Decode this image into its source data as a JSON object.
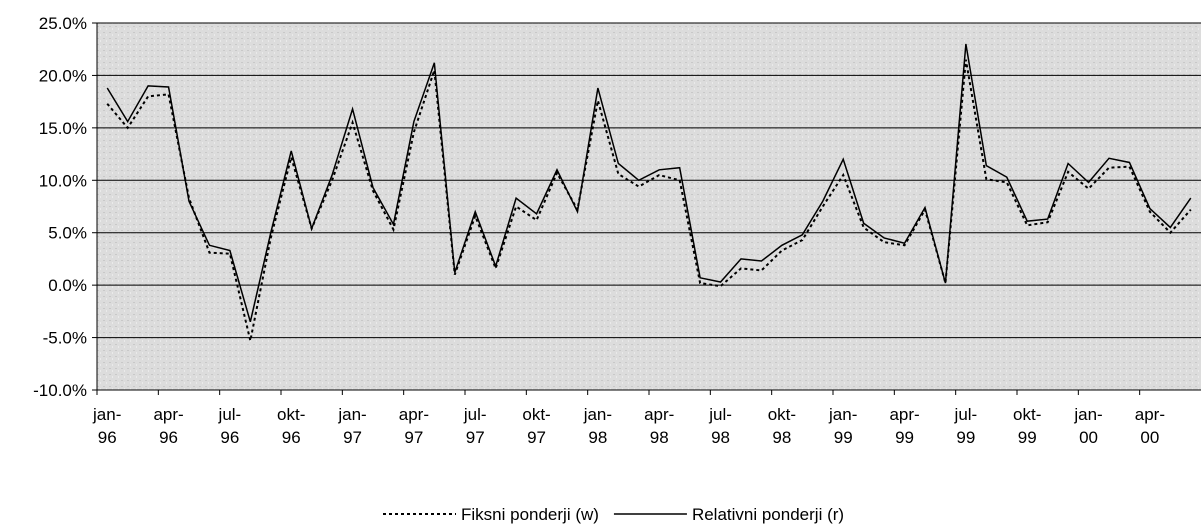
{
  "chart_data": {
    "type": "line",
    "categories": [
      "jan-96",
      null,
      null,
      "apr-96",
      null,
      null,
      "jul-96",
      null,
      null,
      "okt-96",
      null,
      null,
      "jan-97",
      null,
      null,
      "apr-97",
      null,
      null,
      "jul-97",
      null,
      null,
      "okt-97",
      null,
      null,
      "jan-98",
      null,
      null,
      "apr-98",
      null,
      null,
      "jul-98",
      null,
      null,
      "okt-98",
      null,
      null,
      "jan-99",
      null,
      null,
      "apr-99",
      null,
      null,
      "jul-99",
      null,
      null,
      "okt-99",
      null,
      null,
      "jan-00",
      null,
      null,
      "apr-00",
      null,
      null
    ],
    "series": [
      {
        "name": "Fiksni ponderji (w)",
        "color": "#000000",
        "dash": true,
        "values": [
          17.3,
          15.0,
          18.0,
          18.2,
          8.3,
          3.1,
          3.0,
          -5.3,
          4.5,
          12.2,
          5.4,
          10.0,
          15.5,
          9.0,
          5.3,
          14.6,
          20.5,
          1.0,
          6.6,
          1.6,
          7.5,
          6.2,
          10.7,
          7.2,
          17.6,
          10.6,
          9.4,
          10.5,
          10.0,
          0.2,
          -0.1,
          1.6,
          1.4,
          3.3,
          4.3,
          7.5,
          10.5,
          5.5,
          4.1,
          3.8,
          7.2,
          0.2,
          21.5,
          10.1,
          9.8,
          5.7,
          6.0,
          10.8,
          9.2,
          11.2,
          11.3,
          7.0,
          5.0,
          7.2
        ]
      },
      {
        "name": "Relativni ponderji (r)",
        "color": "#000000",
        "dash": false,
        "values": [
          18.8,
          15.6,
          19.0,
          18.9,
          8.0,
          3.8,
          3.3,
          -3.5,
          5.0,
          12.8,
          5.4,
          10.5,
          16.8,
          9.3,
          5.8,
          15.6,
          21.2,
          1.2,
          7.0,
          1.8,
          8.3,
          6.8,
          11.0,
          7.0,
          18.8,
          11.6,
          10.0,
          11.0,
          11.2,
          0.7,
          0.3,
          2.5,
          2.3,
          3.8,
          4.8,
          8.0,
          12.0,
          5.9,
          4.5,
          4.0,
          7.4,
          0.2,
          23.0,
          11.4,
          10.3,
          6.1,
          6.3,
          11.6,
          9.8,
          12.1,
          11.7,
          7.3,
          5.5,
          8.3
        ]
      }
    ],
    "ylim": [
      -10,
      25
    ],
    "yticks": [
      {
        "value": -10,
        "label": "-10.0%"
      },
      {
        "value": -5,
        "label": "-5.0%"
      },
      {
        "value": 0,
        "label": "0.0%"
      },
      {
        "value": 5,
        "label": "5.0%"
      },
      {
        "value": 10,
        "label": "10.0%"
      },
      {
        "value": 15,
        "label": "15.0%"
      },
      {
        "value": 20,
        "label": "20.0%"
      },
      {
        "value": 25,
        "label": "25.0%"
      }
    ],
    "grid": true,
    "legend": "bottom"
  }
}
